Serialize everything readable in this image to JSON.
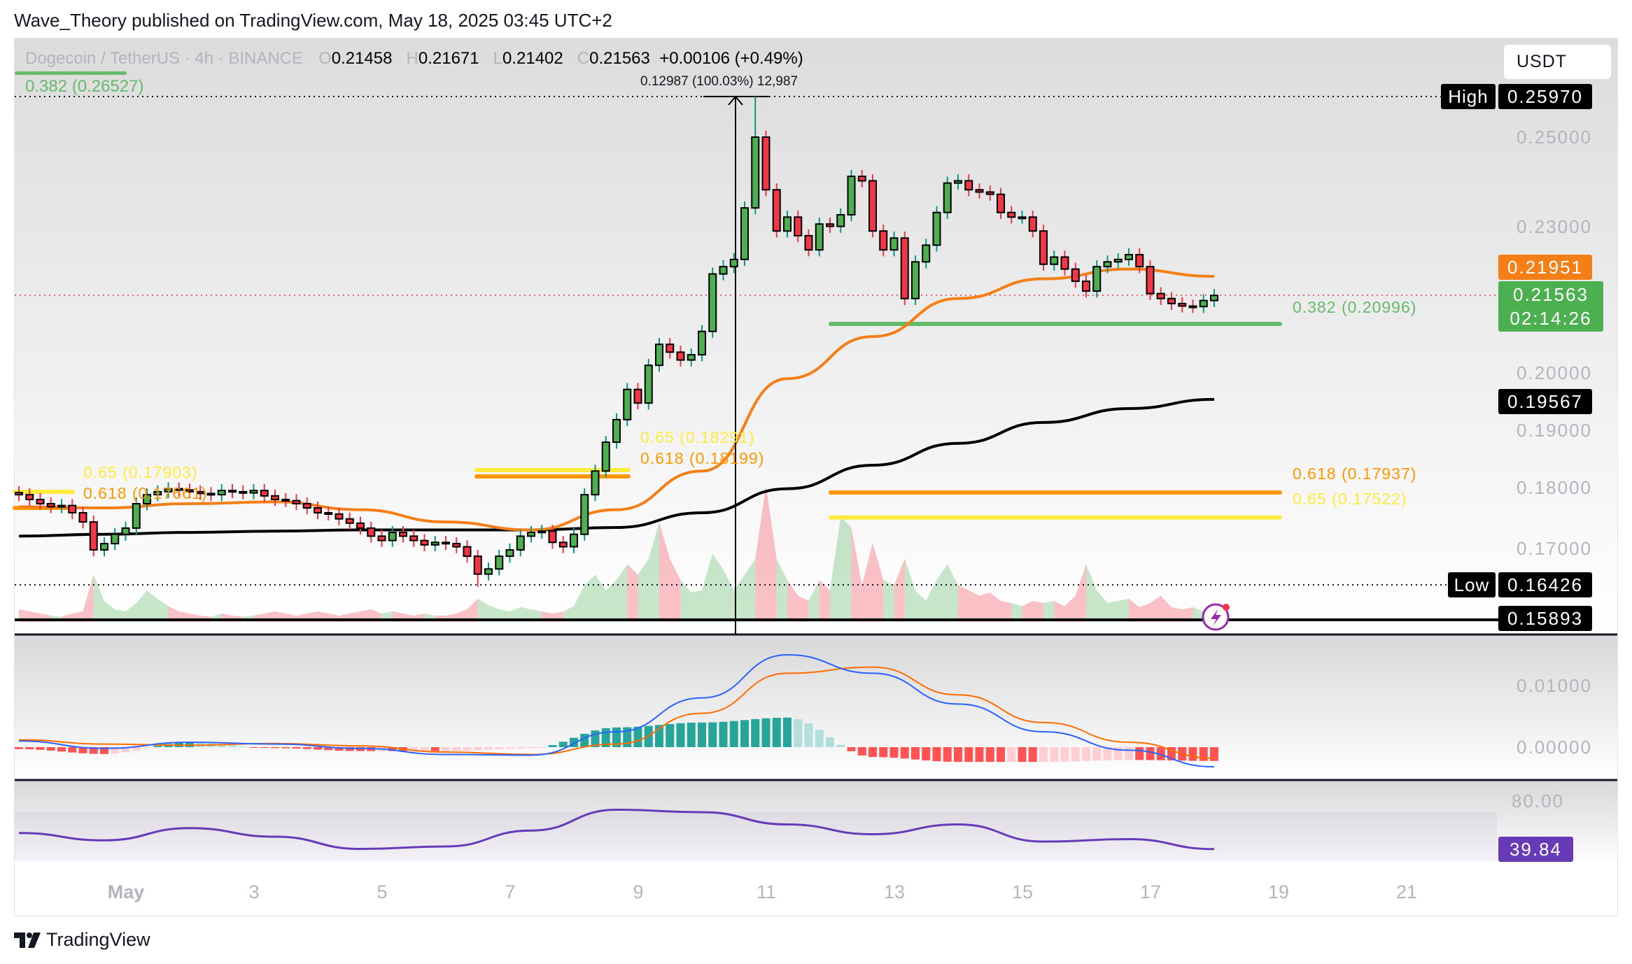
{
  "header": {
    "published": "Wave_Theory published on TradingView.com, May 18, 2025 03:45 UTC+2"
  },
  "legend": {
    "symbol": "Dogecoin / TetherUS · 4h · BINANCE",
    "overlay_fib": "0.382 (0.26527)",
    "o_label": "O",
    "o": "0.21458",
    "h_label": "H",
    "h": "0.21671",
    "l_label": "L",
    "l": "0.21402",
    "c_label": "C",
    "c": "0.21563",
    "change": "+0.00106 (+0.49%)"
  },
  "measure_label": "0.12987 (100.03%) 12,987",
  "currency_button": "USDT",
  "price_axis": {
    "ticks": [
      "0.25000",
      "0.23000",
      "0.20000",
      "0.19000",
      "0.18000",
      "0.17000"
    ],
    "high_tag": "High",
    "high": "0.25970",
    "low_tag": "Low",
    "low": "0.16426",
    "ema_fast": "0.21951",
    "last_price": "0.21563",
    "countdown": "02:14:26",
    "ema_slow": "0.19567",
    "lower_line": "0.15893"
  },
  "fib_labels": {
    "left_065": "0.65 (0.17903)",
    "left_0618": "0.618 (0.17661)",
    "mid_065": "0.65 (0.18291)",
    "mid_0618": "0.618 (0.18199)",
    "right_0382": "0.382 (0.20996)",
    "right_0618": "0.618 (0.17937)",
    "right_065": "0.65 (0.17522)"
  },
  "macd_axis": {
    "ticks": [
      "0.01000",
      "0.00000"
    ]
  },
  "rsi_axis": {
    "tick": "80.00",
    "value": "39.84"
  },
  "time_axis": [
    "May",
    "3",
    "5",
    "7",
    "9",
    "11",
    "13",
    "15",
    "17",
    "19",
    "21"
  ],
  "branding": {
    "logo": "TradingView"
  },
  "colors": {
    "up": "#4caf50",
    "down": "#f23645",
    "ema_fast": "#f57f17",
    "ema_slow": "#000000",
    "fib_green": "#66bb6a",
    "fib_orange": "#ff9800",
    "fib_yellow": "#ffeb3b",
    "macd": "#2962ff",
    "signal": "#ff6d00",
    "rsi": "#673ab7"
  },
  "chart_data": {
    "type": "candlestick",
    "interval": "4h",
    "scale": "log",
    "high": 0.2597,
    "low": 0.16426,
    "closes": [
      0.179,
      0.1782,
      0.1775,
      0.177,
      0.1772,
      0.176,
      0.1745,
      0.17,
      0.171,
      0.1725,
      0.1735,
      0.1775,
      0.179,
      0.1795,
      0.18,
      0.1798,
      0.1795,
      0.1792,
      0.179,
      0.1797,
      0.1795,
      0.1793,
      0.1797,
      0.1788,
      0.1782,
      0.178,
      0.1775,
      0.1768,
      0.176,
      0.1758,
      0.175,
      0.1743,
      0.1735,
      0.1722,
      0.1715,
      0.1728,
      0.1722,
      0.1715,
      0.1708,
      0.1712,
      0.171,
      0.1705,
      0.169,
      0.1662,
      0.167,
      0.169,
      0.17,
      0.1722,
      0.1728,
      0.173,
      0.1712,
      0.1705,
      0.1725,
      0.179,
      0.183,
      0.188,
      0.192,
      0.1975,
      0.195,
      0.202,
      0.206,
      0.2045,
      0.203,
      0.204,
      0.2085,
      0.22,
      0.2215,
      0.223,
      0.234,
      0.25,
      0.238,
      0.229,
      0.232,
      0.228,
      0.225,
      0.2305,
      0.23,
      0.2325,
      0.241,
      0.24,
      0.229,
      0.225,
      0.2275,
      0.215,
      0.2225,
      0.226,
      0.233,
      0.2395,
      0.24,
      0.238,
      0.2375,
      0.237,
      0.233,
      0.232,
      0.232,
      0.229,
      0.222,
      0.2235,
      0.221,
      0.2185,
      0.2165,
      0.2215,
      0.2225,
      0.223,
      0.224,
      0.2215,
      0.216,
      0.215,
      0.214,
      0.2135,
      0.2134,
      0.2146,
      0.21563
    ],
    "volume_relative": [
      12,
      10,
      8,
      6,
      5,
      8,
      10,
      45,
      20,
      12,
      10,
      18,
      30,
      22,
      15,
      10,
      8,
      6,
      5,
      8,
      6,
      5,
      6,
      8,
      10,
      8,
      6,
      8,
      10,
      8,
      6,
      8,
      10,
      12,
      8,
      10,
      8,
      6,
      8,
      6,
      6,
      8,
      12,
      22,
      16,
      12,
      10,
      14,
      12,
      10,
      8,
      10,
      15,
      35,
      45,
      30,
      40,
      55,
      45,
      60,
      95,
      60,
      40,
      28,
      30,
      65,
      50,
      30,
      45,
      60,
      130,
      60,
      40,
      25,
      20,
      40,
      30,
      100,
      90,
      35,
      75,
      40,
      35,
      60,
      30,
      20,
      40,
      55,
      35,
      30,
      25,
      28,
      20,
      18,
      15,
      20,
      18,
      20,
      15,
      25,
      55,
      30,
      18,
      20,
      22,
      14,
      18,
      25,
      14,
      12,
      14,
      10,
      10
    ],
    "ema_fast_samples": [
      0.177,
      0.1768,
      0.1775,
      0.1778,
      0.1765,
      0.1745,
      0.1732,
      0.1765,
      0.183,
      0.1995,
      0.2075,
      0.215,
      0.219,
      0.221,
      0.21951
    ],
    "ema_slow_samples": [
      0.1722,
      0.1725,
      0.1728,
      0.173,
      0.1732,
      0.1732,
      0.1732,
      0.1736,
      0.176,
      0.18,
      0.184,
      0.1878,
      0.1915,
      0.194,
      0.19567
    ],
    "fib_levels": {
      "0.382": 0.20996,
      "0.618": 0.17937,
      "0.65": 0.17522
    },
    "macd_samples": [
      0.001,
      -0.0002,
      0.0008,
      0.0005,
      -0.0002,
      -0.0012,
      -0.0013,
      0.0025,
      0.008,
      0.015,
      0.012,
      0.007,
      0.0025,
      -0.0005,
      -0.0032
    ],
    "signal_samples": [
      0.0012,
      0.0005,
      0.0003,
      0.0006,
      0.0002,
      -0.0008,
      -0.0012,
      0.0005,
      0.0055,
      0.012,
      0.013,
      0.0085,
      0.004,
      0.0008,
      -0.0018
    ],
    "rsi_samples": [
      53,
      47,
      57,
      50,
      40,
      42,
      55,
      72,
      70,
      60,
      52,
      60,
      46,
      48,
      39.84
    ],
    "rsi_band": [
      30,
      70
    ]
  }
}
